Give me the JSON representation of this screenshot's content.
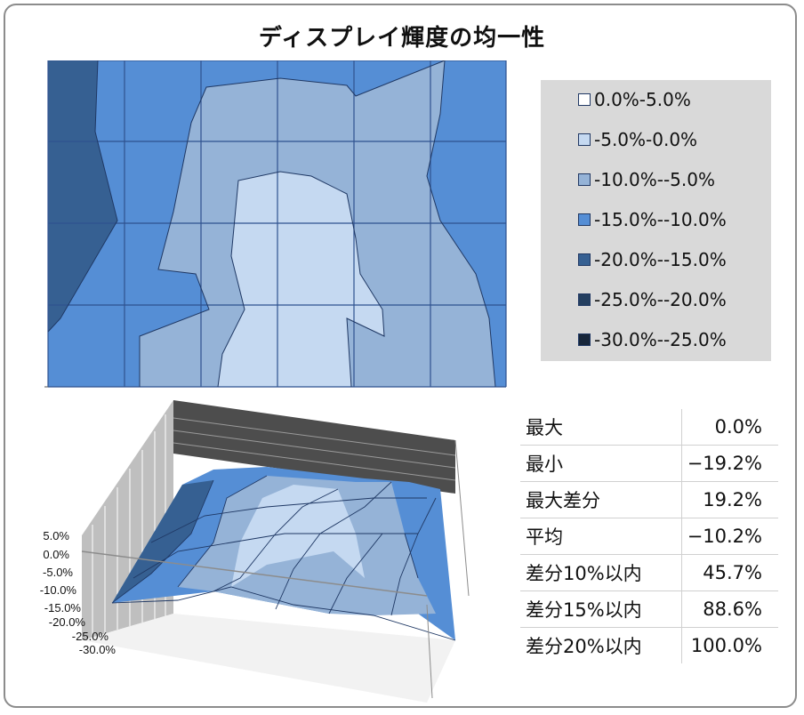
{
  "title": "ディスプレイ輝度の均一性",
  "colors": {
    "band_0_5": "#ffffff",
    "band_m5_0": "#c5d9f1",
    "band_m10_m5": "#95b3d7",
    "band_m15_m10": "#558ed5",
    "band_m20_m15": "#366092",
    "band_m25_m20": "#243f60",
    "band_m30_m25": "#17263a",
    "legend_bg": "#d9d9d9",
    "grid": "#203864"
  },
  "chart_data": [
    {
      "type": "heatmap",
      "rows": 4,
      "cols": 6,
      "legend": [
        {
          "label": "0.0%-5.0%",
          "color": "#ffffff"
        },
        {
          "label": "-5.0%-0.0%",
          "color": "#c5d9f1"
        },
        {
          "label": "-10.0%--5.0%",
          "color": "#95b3d7"
        },
        {
          "label": "-15.0%--10.0%",
          "color": "#558ed5"
        },
        {
          "label": "-20.0%--15.0%",
          "color": "#366092"
        },
        {
          "label": "-25.0%--20.0%",
          "color": "#243f60"
        },
        {
          "label": "-30.0%--25.0%",
          "color": "#17263a"
        }
      ],
      "legend_placement": "right"
    },
    {
      "type": "surface",
      "y_tick_labels": [
        "5.0%",
        "0.0%",
        "-5.0%",
        "-10.0%",
        "-15.0%",
        "-20.0%",
        "-25.0%",
        "-30.0%"
      ],
      "ylim": [
        -30,
        5
      ]
    }
  ],
  "stats": [
    {
      "label": "最大",
      "value": "0.0%"
    },
    {
      "label": "最小",
      "value": "−19.2%"
    },
    {
      "label": "最大差分",
      "value": "19.2%"
    },
    {
      "label": "平均",
      "value": "−10.2%"
    },
    {
      "label": "差分10%以内",
      "value": "45.7%"
    },
    {
      "label": "差分15%以内",
      "value": "88.6%"
    },
    {
      "label": "差分20%以内",
      "value": "100.0%"
    }
  ]
}
